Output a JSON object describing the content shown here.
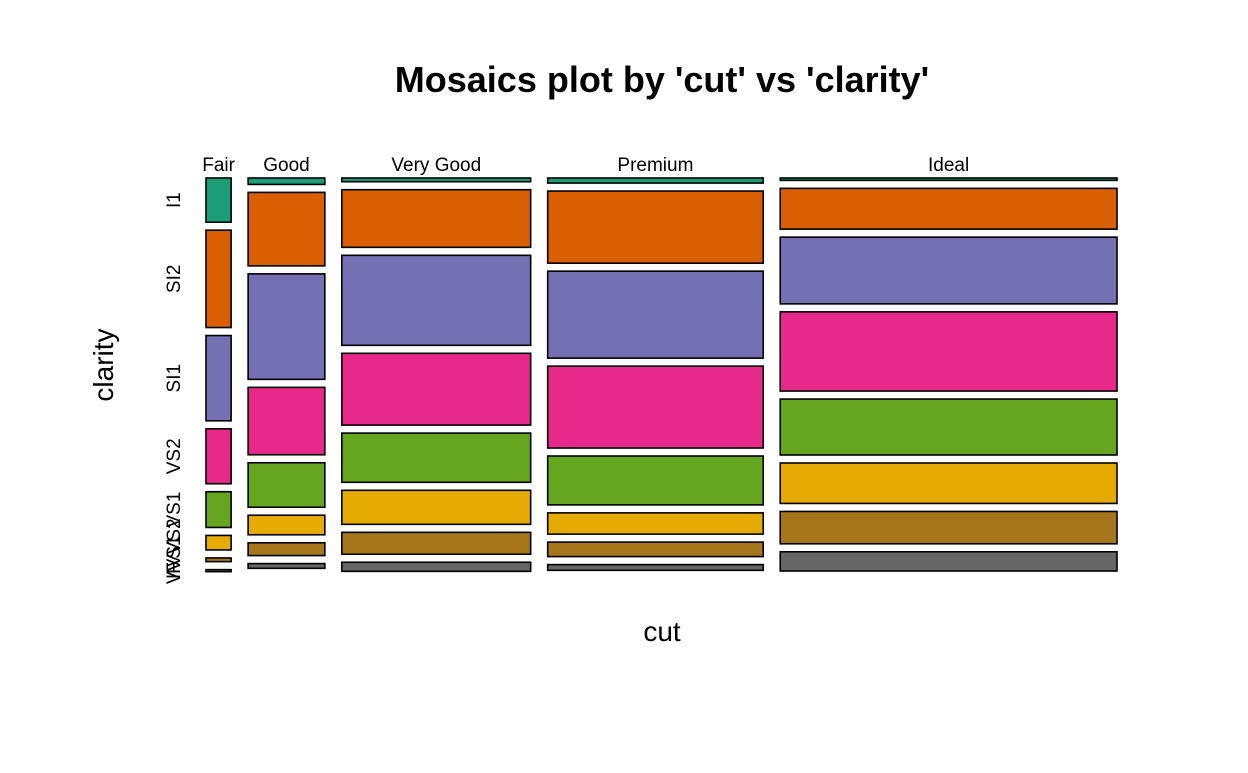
{
  "chart_data": {
    "type": "mosaic",
    "title": "Mosaics plot by 'cut' vs 'clarity'",
    "xlabel": "cut",
    "ylabel": "clarity",
    "x_var": "cut",
    "y_var": "clarity",
    "cut_levels": [
      "Fair",
      "Good",
      "Very Good",
      "Premium",
      "Ideal"
    ],
    "clarity_levels": [
      "I1",
      "SI2",
      "SI1",
      "VS2",
      "VS1",
      "VVS2",
      "VVS1",
      "IF"
    ],
    "cut_proportions": [
      0.0298,
      0.091,
      0.224,
      0.2557,
      0.3995
    ],
    "clarity_proportions_by_cut": {
      "Fair": [
        0.131,
        0.289,
        0.253,
        0.163,
        0.106,
        0.043,
        0.011,
        0.006
      ],
      "Good": [
        0.019,
        0.218,
        0.313,
        0.2,
        0.132,
        0.058,
        0.038,
        0.014
      ],
      "Very Good": [
        0.011,
        0.171,
        0.267,
        0.213,
        0.146,
        0.101,
        0.065,
        0.027
      ],
      "Premium": [
        0.015,
        0.214,
        0.258,
        0.243,
        0.145,
        0.063,
        0.043,
        0.017
      ],
      "Ideal": [
        0.007,
        0.121,
        0.198,
        0.235,
        0.166,
        0.12,
        0.096,
        0.057
      ]
    },
    "colors": [
      "#1b9e77",
      "#d95f02",
      "#7570b3",
      "#e7298a",
      "#66a61e",
      "#e6ab02",
      "#a6761d",
      "#666666"
    ],
    "grid": false,
    "legend": "none"
  }
}
